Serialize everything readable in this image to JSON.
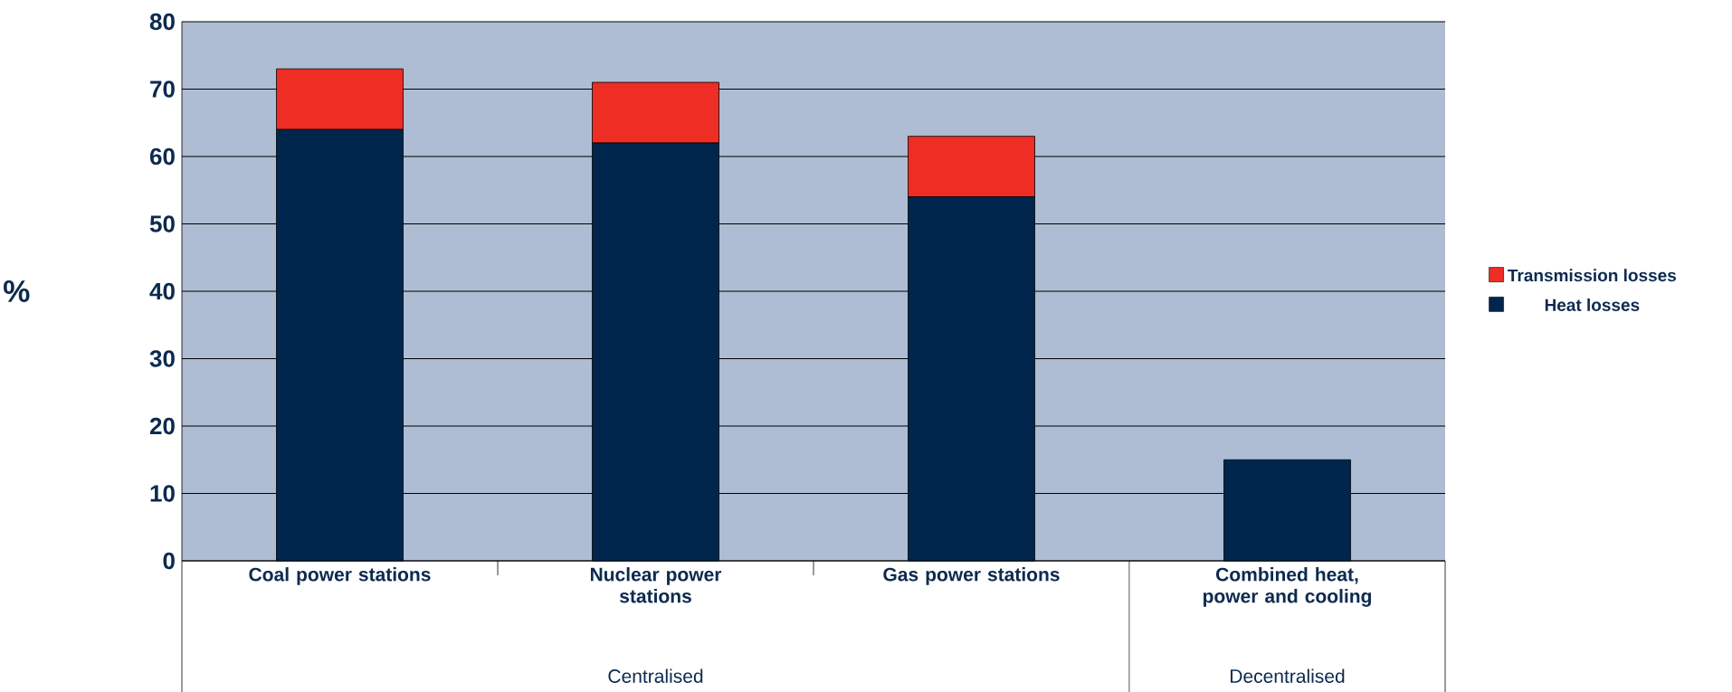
{
  "chart_data": {
    "type": "bar",
    "stacked": true,
    "ylabel": "%",
    "categories": [
      "Coal power stations",
      "Nuclear power stations",
      "Gas power stations",
      "Combined heat, power and cooling"
    ],
    "series": [
      {
        "name": "Heat losses",
        "color": "#00264d",
        "values": [
          64,
          62,
          54,
          15
        ]
      },
      {
        "name": "Transmission losses",
        "color": "#ee2d24",
        "values": [
          9,
          9,
          9,
          null
        ]
      }
    ],
    "ylim": [
      0,
      80
    ],
    "yticks": [
      0,
      10,
      20,
      30,
      40,
      50,
      60,
      70,
      80
    ],
    "grid": "y",
    "legend": "right",
    "annotations": [
      "Centralised",
      "Decentralised"
    ]
  }
}
